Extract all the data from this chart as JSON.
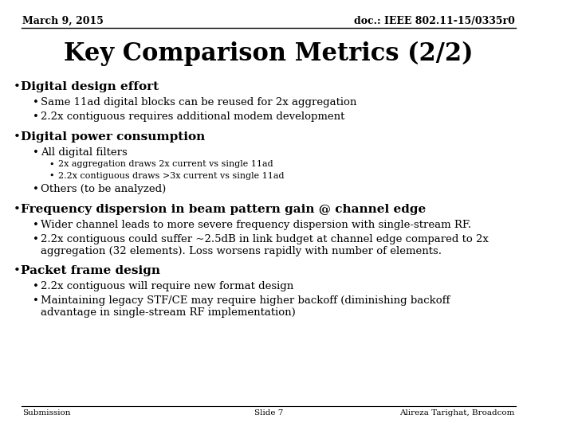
{
  "header_left": "March 9, 2015",
  "header_right": "doc.: IEEE 802.11-15/0335r0",
  "title": "Key Comparison Metrics (2/2)",
  "footer_left": "Submission",
  "footer_center": "Slide 7",
  "footer_right": "Alireza Tarighat, Broadcom",
  "bg_color": "#ffffff",
  "text_color": "#000000",
  "content": [
    {
      "level": 1,
      "bold": true,
      "text": "Digital design effort"
    },
    {
      "level": 2,
      "bold": false,
      "text": "Same 11ad digital blocks can be reused for 2x aggregation"
    },
    {
      "level": 2,
      "bold": false,
      "text": "2.2x contiguous requires additional modem development"
    },
    {
      "level": 1,
      "bold": true,
      "text": "Digital power consumption"
    },
    {
      "level": 2,
      "bold": false,
      "text": "All digital filters"
    },
    {
      "level": 3,
      "bold": false,
      "text": "2x aggregation draws 2x current vs single 11ad"
    },
    {
      "level": 3,
      "bold": false,
      "text": "2.2x contiguous draws >3x current vs single 11ad"
    },
    {
      "level": 2,
      "bold": false,
      "text": "Others (to be analyzed)"
    },
    {
      "level": 1,
      "bold": true,
      "text": "Frequency dispersion in beam pattern gain @ channel edge"
    },
    {
      "level": 2,
      "bold": false,
      "text": "Wider channel leads to more severe frequency dispersion with single-stream RF."
    },
    {
      "level": 2,
      "bold": false,
      "text": "2.2x contiguous could suffer ~2.5dB in link budget at channel edge compared to 2x\naggregation (32 elements). Loss worsens rapidly with number of elements."
    },
    {
      "level": 1,
      "bold": true,
      "text": "Packet frame design"
    },
    {
      "level": 2,
      "bold": false,
      "text": "2.2x contiguous will require new format design"
    },
    {
      "level": 2,
      "bold": false,
      "text": "Maintaining legacy STF/CE may require higher backoff (diminishing backoff\nadvantage in single-stream RF implementation)"
    }
  ]
}
